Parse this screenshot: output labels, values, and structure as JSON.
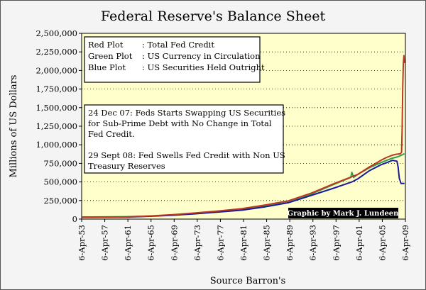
{
  "chart_data": {
    "type": "line",
    "title": "Federal Reserve's Balance Sheet",
    "xlabel": "Source Barron's",
    "ylabel": "Millions of US Dollars",
    "ylim": [
      0,
      2500000
    ],
    "yticks": [
      0,
      250000,
      500000,
      750000,
      1000000,
      1250000,
      1500000,
      1750000,
      2000000,
      2250000,
      2500000
    ],
    "ytick_labels": [
      "0",
      "250,000",
      "500,000",
      "750,000",
      "1,000,000",
      "1,250,000",
      "1,500,000",
      "1,750,000",
      "2,000,000",
      "2,250,000",
      "2,500,000"
    ],
    "xlim": [
      1953.26,
      2009.26
    ],
    "xticks": [
      1953.26,
      1957.26,
      1961.26,
      1965.26,
      1969.26,
      1973.26,
      1977.26,
      1981.26,
      1985.26,
      1989.26,
      1993.26,
      1997.26,
      2001.26,
      2005.26,
      2009.26
    ],
    "xtick_labels": [
      "6-Apr-53",
      "6-Apr-57",
      "6-Apr-61",
      "6-Apr-65",
      "6-Apr-69",
      "6-Apr-73",
      "6-Apr-77",
      "6-Apr-81",
      "6-Apr-85",
      "6-Apr-89",
      "6-Apr-93",
      "6-Apr-97",
      "6-Apr-01",
      "6-Apr-05",
      "6-Apr-09"
    ],
    "grid": true,
    "legend": [
      {
        "label": "Red Plot",
        "desc": ": Total Fed Credit",
        "color": "#c0361f"
      },
      {
        "label": "Green Plot",
        "desc": ": US Currency in Circulation",
        "color": "#2e9e4e"
      },
      {
        "label": "Blue Plot",
        "desc": ": US Securities Held Outright",
        "color": "#1a1a9a"
      }
    ],
    "annotation_lines": [
      "24 Dec 07: Feds Starts Swapping US Securities",
      "for Sub-Prime Debt with No Change in Total",
      "Fed Credit.",
      "",
      "29 Sept 08:  Fed Swells Fed Credit with Non US",
      "Treasury Reserves"
    ],
    "credit": "Graphic by Mark J. Lundeen",
    "series": [
      {
        "name": "Total Fed Credit",
        "color": "#c0361f",
        "x": [
          1953.3,
          1957,
          1961,
          1965,
          1969,
          1973,
          1977,
          1981,
          1985,
          1989,
          1993,
          1997,
          2001,
          2003,
          2005,
          2006,
          2007,
          2007.5,
          2008,
          2008.4,
          2008.6,
          2008.7,
          2008.75,
          2008.8,
          2008.9,
          2009.0,
          2009.1
        ],
        "y": [
          26000,
          27000,
          30000,
          42000,
          60000,
          83000,
          110000,
          140000,
          190000,
          245000,
          350000,
          480000,
          600000,
          700000,
          790000,
          830000,
          860000,
          870000,
          875000,
          880000,
          900000,
          1200000,
          1500000,
          1800000,
          2100000,
          2200000,
          2100000
        ]
      },
      {
        "name": "US Currency in Circulation",
        "color": "#2e9e4e",
        "x": [
          1953.3,
          1957,
          1961,
          1965,
          1969,
          1973,
          1977,
          1981,
          1985,
          1989,
          1993,
          1997,
          1999.8,
          2000.0,
          2000.3,
          2001,
          2003,
          2005,
          2006,
          2007,
          2008,
          2009.1
        ],
        "y": [
          29000,
          30000,
          32000,
          40000,
          55000,
          75000,
          100000,
          130000,
          180000,
          240000,
          340000,
          470000,
          560000,
          630000,
          560000,
          600000,
          690000,
          760000,
          790000,
          820000,
          840000,
          880000
        ]
      },
      {
        "name": "US Securities Held Outright",
        "color": "#1a1a9a",
        "x": [
          1953.3,
          1957,
          1961,
          1965,
          1969,
          1973,
          1977,
          1981,
          1985,
          1989,
          1993,
          1997,
          2000,
          2001,
          2003,
          2005,
          2006,
          2007,
          2007.8,
          2008.0,
          2008.2,
          2008.5,
          2008.8,
          2009.1
        ],
        "y": [
          24000,
          24500,
          27000,
          38000,
          52000,
          72000,
          95000,
          120000,
          165000,
          220000,
          320000,
          420000,
          500000,
          540000,
          650000,
          730000,
          760000,
          790000,
          780000,
          700000,
          550000,
          480000,
          480000,
          480000
        ]
      }
    ]
  }
}
